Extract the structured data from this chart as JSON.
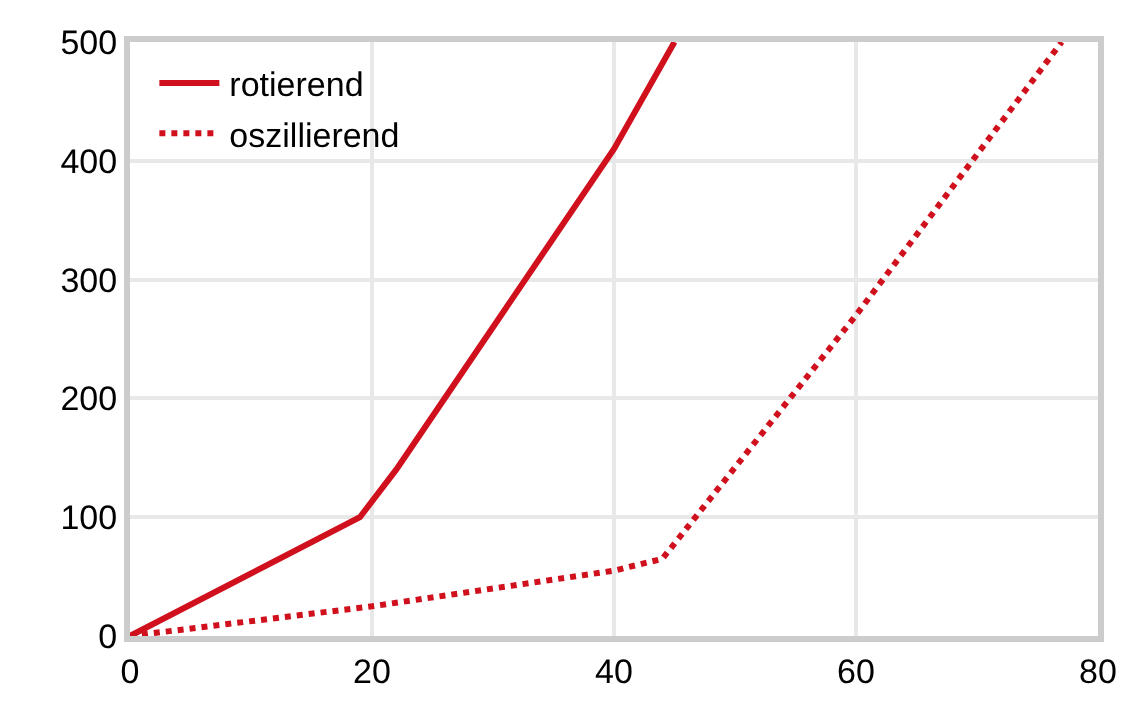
{
  "chart_data": {
    "type": "line",
    "xlim": [
      0,
      80
    ],
    "xticks": [
      0,
      20,
      40,
      60,
      80
    ],
    "ylim": [
      0,
      500
    ],
    "yticks": [
      0,
      100,
      200,
      300,
      400,
      500
    ],
    "grid": true,
    "legend": "top left",
    "marker": "none",
    "series": [
      {
        "name": "rotierend",
        "color": "#d0101c",
        "line_style": "solid",
        "x": [
          0,
          19,
          22,
          40,
          45
        ],
        "values": [
          0,
          100,
          140,
          410,
          500
        ]
      },
      {
        "name": "oszillierend",
        "color": "#d0101c",
        "line_style": "dotted",
        "x": [
          0,
          20,
          40,
          44,
          60,
          77
        ],
        "values": [
          0,
          25,
          55,
          65,
          270,
          500
        ]
      }
    ]
  }
}
